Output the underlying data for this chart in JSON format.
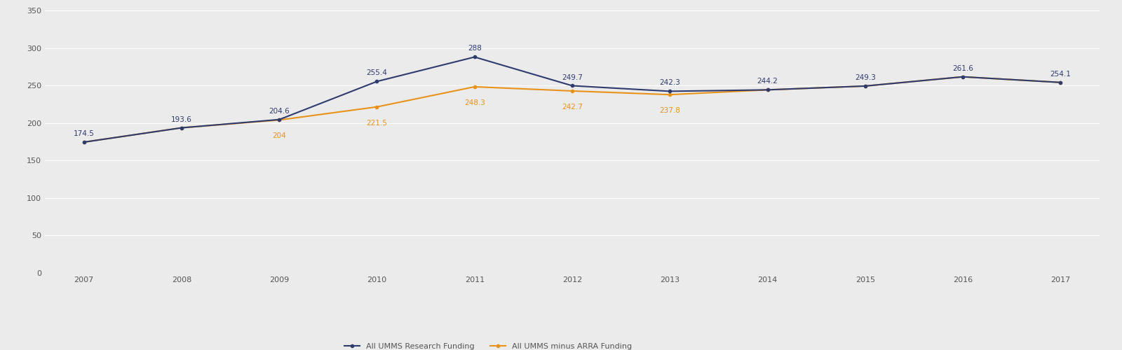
{
  "years": [
    2007,
    2008,
    2009,
    2010,
    2011,
    2012,
    2013,
    2014,
    2015,
    2016,
    2017
  ],
  "all_umms": [
    174.5,
    193.6,
    204.6,
    255.4,
    288,
    249.7,
    242.3,
    244.2,
    249.3,
    261.6,
    254.1
  ],
  "minus_arra": [
    174.5,
    193.6,
    204,
    221.5,
    248.3,
    242.7,
    237.8,
    244.2,
    249.3,
    261.6,
    254.1
  ],
  "all_umms_labels": [
    "174.5",
    "193.6",
    "204.6",
    "255.4",
    "288",
    "249.7",
    "242.3",
    "244.2",
    "249.3",
    "261.6",
    "254.1"
  ],
  "minus_arra_labels": [
    "",
    "",
    "204",
    "221.5",
    "248.3",
    "242.7",
    "237.8",
    "",
    "",
    "",
    ""
  ],
  "all_umms_color": "#2e3b6e",
  "minus_arra_color": "#e8921a",
  "background_color": "#ebebeb",
  "plot_bg_color": "#ebebeb",
  "ylim": [
    0,
    350
  ],
  "yticks": [
    0,
    50,
    100,
    150,
    200,
    250,
    300,
    350
  ],
  "legend_label_1": "All UMMS Research Funding",
  "legend_label_2": "All UMMS minus ARRA Funding",
  "label_fontsize": 7.5,
  "tick_fontsize": 8,
  "line_width": 1.5,
  "marker_size": 3,
  "figsize": [
    16.0,
    5.0
  ],
  "dpi": 100
}
